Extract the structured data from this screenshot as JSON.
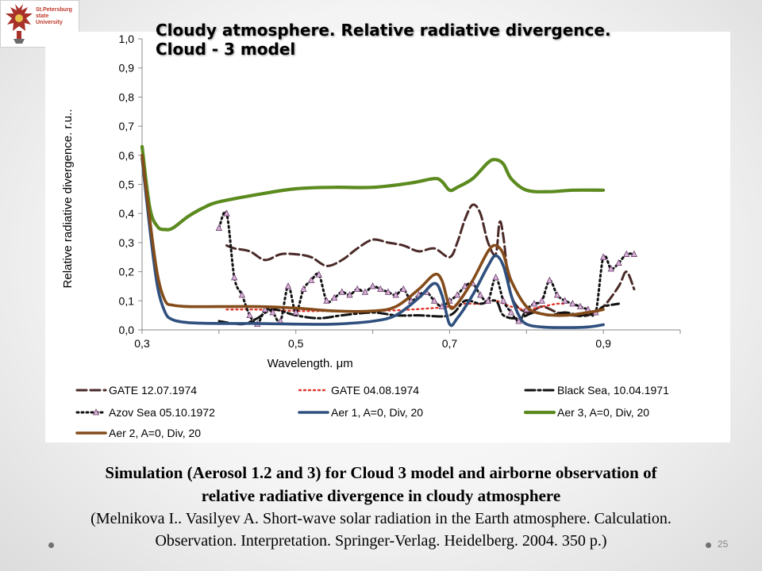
{
  "logo": {
    "text": "St.Petersburg\nstate\nUniversity"
  },
  "slide": {
    "title_line1": "Cloudy atmosphere. Relative radiative divergence.",
    "title_line2": "Cloud - 3 model",
    "caption_line1": "Simulation (Aerosol 1.2 and 3) for Cloud 3 model and airborne observation of",
    "caption_line2": "relative radiative divergence in cloudy atmosphere",
    "reference_line1": "(Melnikova I.. Vasilyev A. Short-wave solar radiation in the Earth atmosphere. Calculation.",
    "reference_line2": "Observation. Interpretation. Springer-Verlag. Heidelberg. 2004. 350 p.)",
    "page_number": "25"
  },
  "chart_data": {
    "type": "line",
    "title": "",
    "xlabel": "Wavelength. μm",
    "ylabel": "Relative radiative divergence. r.u..",
    "xlim": [
      0.3,
      1.0
    ],
    "ylim": [
      0.0,
      1.0
    ],
    "xticks": [
      0.3,
      0.5,
      0.7,
      0.9
    ],
    "xtick_labels": [
      "0,3",
      "0,5",
      "0,7",
      "0,9"
    ],
    "yticks": [
      0.0,
      0.1,
      0.2,
      0.3,
      0.4,
      0.5,
      0.6,
      0.7,
      0.8,
      0.9,
      1.0
    ],
    "ytick_labels": [
      "0,0",
      "0,1",
      "0,2",
      "0,3",
      "0,4",
      "0,5",
      "0,6",
      "0,7",
      "0,8",
      "0,9",
      "1,0"
    ],
    "grid": false,
    "legend_position": "bottom",
    "series": [
      {
        "name": "GATE 12.07.1974",
        "color": "#4a2a28",
        "style": "dashed",
        "points": [
          [
            0.41,
            0.29
          ],
          [
            0.42,
            0.28
          ],
          [
            0.44,
            0.27
          ],
          [
            0.46,
            0.24
          ],
          [
            0.48,
            0.26
          ],
          [
            0.5,
            0.26
          ],
          [
            0.52,
            0.25
          ],
          [
            0.54,
            0.22
          ],
          [
            0.56,
            0.24
          ],
          [
            0.58,
            0.28
          ],
          [
            0.6,
            0.31
          ],
          [
            0.62,
            0.3
          ],
          [
            0.64,
            0.29
          ],
          [
            0.66,
            0.27
          ],
          [
            0.68,
            0.28
          ],
          [
            0.7,
            0.25
          ],
          [
            0.71,
            0.3
          ],
          [
            0.72,
            0.38
          ],
          [
            0.73,
            0.43
          ],
          [
            0.74,
            0.4
          ],
          [
            0.75,
            0.3
          ],
          [
            0.76,
            0.26
          ],
          [
            0.765,
            0.37
          ],
          [
            0.77,
            0.32
          ],
          [
            0.78,
            0.12
          ],
          [
            0.8,
            0.06
          ],
          [
            0.82,
            0.08
          ],
          [
            0.84,
            0.06
          ],
          [
            0.86,
            0.05
          ],
          [
            0.88,
            0.05
          ],
          [
            0.9,
            0.08
          ],
          [
            0.92,
            0.15
          ],
          [
            0.93,
            0.2
          ],
          [
            0.94,
            0.14
          ]
        ]
      },
      {
        "name": "GATE 04.08.1974",
        "color": "#e0362e",
        "style": "dotted",
        "points": [
          [
            0.41,
            0.07
          ],
          [
            0.45,
            0.07
          ],
          [
            0.5,
            0.065
          ],
          [
            0.55,
            0.065
          ],
          [
            0.6,
            0.065
          ],
          [
            0.65,
            0.07
          ],
          [
            0.7,
            0.08
          ],
          [
            0.72,
            0.09
          ],
          [
            0.74,
            0.09
          ],
          [
            0.76,
            0.1
          ],
          [
            0.78,
            0.08
          ],
          [
            0.8,
            0.07
          ],
          [
            0.82,
            0.08
          ],
          [
            0.84,
            0.09
          ],
          [
            0.85,
            0.09
          ]
        ]
      },
      {
        "name": "Black Sea, 10.04.1971",
        "color": "#111111",
        "style": "dashdot",
        "points": [
          [
            0.4,
            0.03
          ],
          [
            0.43,
            0.02
          ],
          [
            0.45,
            0.04
          ],
          [
            0.47,
            0.07
          ],
          [
            0.5,
            0.05
          ],
          [
            0.53,
            0.04
          ],
          [
            0.56,
            0.05
          ],
          [
            0.6,
            0.06
          ],
          [
            0.63,
            0.05
          ],
          [
            0.66,
            0.05
          ],
          [
            0.7,
            0.05
          ],
          [
            0.72,
            0.1
          ],
          [
            0.74,
            0.09
          ],
          [
            0.76,
            0.1
          ],
          [
            0.77,
            0.05
          ],
          [
            0.79,
            0.04
          ],
          [
            0.81,
            0.06
          ],
          [
            0.83,
            0.05
          ],
          [
            0.85,
            0.06
          ],
          [
            0.87,
            0.05
          ],
          [
            0.89,
            0.06
          ],
          [
            0.9,
            0.08
          ],
          [
            0.92,
            0.09
          ]
        ]
      },
      {
        "name": "Azov Sea 05.10.1972",
        "color": "#111111",
        "style": "dotted",
        "marker": "triangle",
        "marker_color": "#d8b4d8",
        "points": [
          [
            0.4,
            0.35
          ],
          [
            0.41,
            0.4
          ],
          [
            0.42,
            0.18
          ],
          [
            0.43,
            0.12
          ],
          [
            0.44,
            0.05
          ],
          [
            0.45,
            0.02
          ],
          [
            0.46,
            0.07
          ],
          [
            0.47,
            0.06
          ],
          [
            0.48,
            0.03
          ],
          [
            0.49,
            0.15
          ],
          [
            0.5,
            0.06
          ],
          [
            0.51,
            0.14
          ],
          [
            0.52,
            0.17
          ],
          [
            0.53,
            0.19
          ],
          [
            0.54,
            0.1
          ],
          [
            0.55,
            0.11
          ],
          [
            0.56,
            0.13
          ],
          [
            0.57,
            0.12
          ],
          [
            0.58,
            0.14
          ],
          [
            0.59,
            0.13
          ],
          [
            0.6,
            0.15
          ],
          [
            0.61,
            0.14
          ],
          [
            0.62,
            0.13
          ],
          [
            0.63,
            0.12
          ],
          [
            0.64,
            0.14
          ],
          [
            0.65,
            0.1
          ],
          [
            0.66,
            0.12
          ],
          [
            0.67,
            0.13
          ],
          [
            0.68,
            0.1
          ],
          [
            0.69,
            0.08
          ],
          [
            0.7,
            0.1
          ],
          [
            0.71,
            0.12
          ],
          [
            0.72,
            0.15
          ],
          [
            0.73,
            0.16
          ],
          [
            0.74,
            0.12
          ],
          [
            0.75,
            0.1
          ],
          [
            0.76,
            0.18
          ],
          [
            0.77,
            0.1
          ],
          [
            0.78,
            0.06
          ],
          [
            0.79,
            0.03
          ],
          [
            0.8,
            0.07
          ],
          [
            0.81,
            0.09
          ],
          [
            0.82,
            0.1
          ],
          [
            0.83,
            0.17
          ],
          [
            0.84,
            0.12
          ],
          [
            0.85,
            0.1
          ],
          [
            0.86,
            0.09
          ],
          [
            0.87,
            0.08
          ],
          [
            0.88,
            0.07
          ],
          [
            0.89,
            0.06
          ],
          [
            0.9,
            0.25
          ],
          [
            0.91,
            0.21
          ],
          [
            0.92,
            0.23
          ],
          [
            0.93,
            0.26
          ],
          [
            0.94,
            0.26
          ]
        ]
      },
      {
        "name": "Aer 1, A=0, Div, 20",
        "color": "#2f4f7e",
        "style": "solid",
        "points": [
          [
            0.3,
            0.59
          ],
          [
            0.31,
            0.35
          ],
          [
            0.32,
            0.15
          ],
          [
            0.33,
            0.06
          ],
          [
            0.34,
            0.035
          ],
          [
            0.36,
            0.025
          ],
          [
            0.4,
            0.022
          ],
          [
            0.45,
            0.022
          ],
          [
            0.5,
            0.02
          ],
          [
            0.55,
            0.02
          ],
          [
            0.6,
            0.03
          ],
          [
            0.63,
            0.05
          ],
          [
            0.66,
            0.11
          ],
          [
            0.68,
            0.16
          ],
          [
            0.69,
            0.12
          ],
          [
            0.7,
            0.02
          ],
          [
            0.71,
            0.04
          ],
          [
            0.73,
            0.12
          ],
          [
            0.75,
            0.22
          ],
          [
            0.76,
            0.255
          ],
          [
            0.77,
            0.22
          ],
          [
            0.78,
            0.12
          ],
          [
            0.79,
            0.05
          ],
          [
            0.8,
            0.02
          ],
          [
            0.82,
            0.01
          ],
          [
            0.85,
            0.008
          ],
          [
            0.88,
            0.01
          ],
          [
            0.9,
            0.018
          ]
        ]
      },
      {
        "name": "Aer 3, A=0, Div, 20",
        "color": "#5b8a1e",
        "style": "solid",
        "points": [
          [
            0.3,
            0.63
          ],
          [
            0.31,
            0.42
          ],
          [
            0.32,
            0.355
          ],
          [
            0.33,
            0.345
          ],
          [
            0.34,
            0.35
          ],
          [
            0.36,
            0.39
          ],
          [
            0.38,
            0.42
          ],
          [
            0.4,
            0.44
          ],
          [
            0.45,
            0.465
          ],
          [
            0.5,
            0.485
          ],
          [
            0.55,
            0.49
          ],
          [
            0.6,
            0.49
          ],
          [
            0.65,
            0.505
          ],
          [
            0.68,
            0.52
          ],
          [
            0.69,
            0.51
          ],
          [
            0.7,
            0.48
          ],
          [
            0.71,
            0.49
          ],
          [
            0.73,
            0.52
          ],
          [
            0.75,
            0.575
          ],
          [
            0.76,
            0.585
          ],
          [
            0.77,
            0.57
          ],
          [
            0.78,
            0.52
          ],
          [
            0.8,
            0.48
          ],
          [
            0.83,
            0.475
          ],
          [
            0.86,
            0.48
          ],
          [
            0.9,
            0.48
          ]
        ]
      },
      {
        "name": "Aer 2, A=0, Div, 20",
        "color": "#844c1a",
        "style": "solid",
        "points": [
          [
            0.3,
            0.6
          ],
          [
            0.31,
            0.38
          ],
          [
            0.32,
            0.19
          ],
          [
            0.33,
            0.1
          ],
          [
            0.34,
            0.085
          ],
          [
            0.36,
            0.08
          ],
          [
            0.4,
            0.08
          ],
          [
            0.45,
            0.08
          ],
          [
            0.5,
            0.075
          ],
          [
            0.55,
            0.065
          ],
          [
            0.6,
            0.065
          ],
          [
            0.63,
            0.08
          ],
          [
            0.66,
            0.14
          ],
          [
            0.68,
            0.19
          ],
          [
            0.69,
            0.17
          ],
          [
            0.7,
            0.08
          ],
          [
            0.71,
            0.09
          ],
          [
            0.73,
            0.17
          ],
          [
            0.75,
            0.27
          ],
          [
            0.76,
            0.29
          ],
          [
            0.77,
            0.26
          ],
          [
            0.78,
            0.17
          ],
          [
            0.8,
            0.08
          ],
          [
            0.82,
            0.055
          ],
          [
            0.85,
            0.05
          ],
          [
            0.88,
            0.06
          ],
          [
            0.9,
            0.07
          ]
        ]
      }
    ]
  }
}
